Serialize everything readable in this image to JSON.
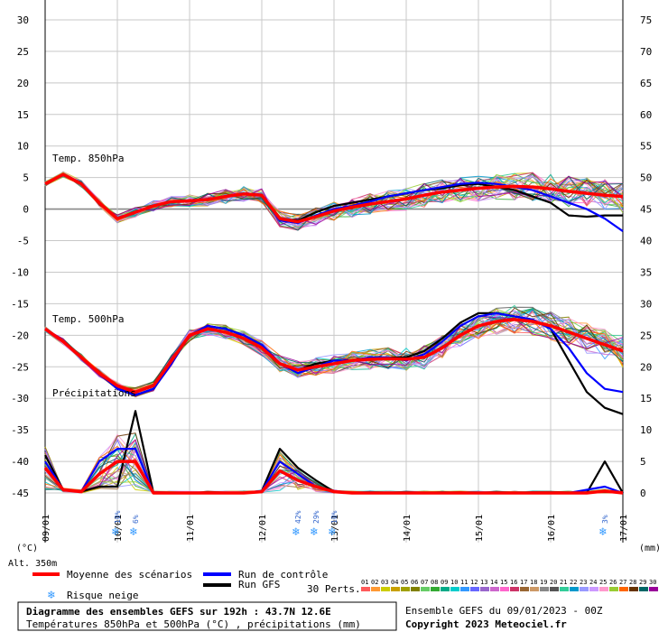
{
  "chart_data": {
    "type": "line",
    "title": "Diagramme des ensembles GEFS sur 192h : 43.7N 12.6E",
    "subtitle": "Températures 850hPa et 500hPa (°C) , précipitations (mm)",
    "run_label": "Ensemble GEFS du 09/01/2023 - 00Z",
    "copyright": "Copyright 2023 Meteociel.fr",
    "altitude_label": "Alt. 350m",
    "ylabel_left": "(°C)",
    "ylabel_right": "(mm)",
    "panel_labels": {
      "t850": "Temp. 850hPa",
      "t500": "Temp. 500hPa",
      "precip": "Précipitations"
    },
    "x_ticks": [
      "09/01",
      "10/01",
      "11/01",
      "12/01",
      "13/01",
      "14/01",
      "15/01",
      "16/01",
      "17/01"
    ],
    "x_range_hours": [
      0,
      192
    ],
    "y_left_ticks": [
      30,
      25,
      20,
      15,
      10,
      5,
      0,
      -5,
      -10,
      -15,
      -20,
      -25,
      -30,
      -35,
      -40,
      -45
    ],
    "y_left_range": [
      -45,
      30
    ],
    "y_right_ticks": [
      75,
      70,
      65,
      60,
      55,
      50,
      45,
      40,
      35,
      30,
      25,
      20,
      15,
      10,
      5,
      0
    ],
    "y_right_range": [
      0,
      75
    ],
    "grid": true,
    "precip_axis_note": "Precipitation values plotted on right axis scale (mm)",
    "legend": {
      "mean": "Moyenne des scénarios",
      "control": "Run de contrôle",
      "gfs": "Run GFS",
      "snow": "Risque neige",
      "perts": "30 Perts.",
      "pert_numbers": [
        "01",
        "02",
        "03",
        "04",
        "05",
        "06",
        "07",
        "08",
        "09",
        "10",
        "11",
        "12",
        "13",
        "14",
        "15",
        "16",
        "17",
        "18",
        "19",
        "20",
        "21",
        "22",
        "23",
        "24",
        "25",
        "26",
        "27",
        "28",
        "29",
        "30"
      ]
    },
    "colors": {
      "mean": "#ff0000",
      "control": "#0000ff",
      "gfs": "#000000",
      "perts": [
        "#ff5a5a",
        "#ff9933",
        "#cccc00",
        "#c8a000",
        "#a0a000",
        "#808000",
        "#66cc66",
        "#33aa33",
        "#00aa88",
        "#00cccc",
        "#3399ff",
        "#6666ff",
        "#9966cc",
        "#cc66cc",
        "#ff66cc",
        "#cc3366",
        "#996633",
        "#cc9966",
        "#888888",
        "#555555",
        "#33cc99",
        "#0099cc",
        "#9999ff",
        "#cc99ff",
        "#ff99cc",
        "#99cc33",
        "#ff6600",
        "#663300",
        "#006666",
        "#990099"
      ]
    },
    "hours": [
      0,
      6,
      12,
      18,
      24,
      30,
      36,
      42,
      48,
      54,
      60,
      66,
      72,
      78,
      84,
      90,
      96,
      102,
      108,
      114,
      120,
      126,
      132,
      138,
      144,
      150,
      156,
      162,
      168,
      174,
      180,
      186,
      192
    ],
    "series": [
      {
        "name": "Moyenne des scénarios",
        "level": "850",
        "values": [
          4,
          5.5,
          4,
          1,
          -1.5,
          -0.5,
          0.5,
          1.2,
          1.3,
          1.5,
          2,
          2.4,
          2.2,
          -1.5,
          -2,
          -1.2,
          -0.3,
          0.3,
          0.8,
          1.2,
          1.6,
          2.2,
          2.7,
          3,
          3.3,
          3.5,
          3.6,
          3.5,
          3.2,
          2.8,
          2.5,
          2.2,
          2
        ]
      },
      {
        "name": "Run de contrôle",
        "level": "850",
        "values": [
          4,
          5.5,
          4,
          1,
          -1.5,
          -0.5,
          0.5,
          1.2,
          1.3,
          1.6,
          2,
          2.5,
          2.3,
          -1.8,
          -2.2,
          -1,
          0,
          0.5,
          1.2,
          2,
          2.5,
          3,
          3.5,
          4,
          4.2,
          4,
          3.5,
          3,
          2,
          1,
          0,
          -1.5,
          -3.5
        ]
      },
      {
        "name": "Run GFS",
        "level": "850",
        "values": [
          4,
          5.5,
          4,
          1,
          -1.5,
          -0.5,
          0.5,
          1.2,
          1.2,
          1.5,
          2,
          2.4,
          2.2,
          -1.5,
          -1.8,
          -0.5,
          0.5,
          1,
          1.5,
          2,
          2.5,
          3,
          3.3,
          3.8,
          4,
          3.5,
          3,
          2,
          1,
          -1,
          -1.2,
          -1,
          -1
        ]
      },
      {
        "name": "Moyenne des scénarios",
        "level": "500",
        "values": [
          -19,
          -21,
          -23.5,
          -26,
          -28,
          -29,
          -28,
          -24,
          -20,
          -19,
          -19.5,
          -20.5,
          -22,
          -24.5,
          -25.5,
          -25,
          -24.5,
          -24,
          -23.8,
          -23.7,
          -23.8,
          -23.5,
          -22,
          -20,
          -18.5,
          -17.8,
          -17.5,
          -17.8,
          -18.5,
          -19.5,
          -20.5,
          -21.5,
          -22.5
        ]
      },
      {
        "name": "Run de contrôle",
        "level": "500",
        "values": [
          -19,
          -21,
          -23.5,
          -26,
          -28.5,
          -29.5,
          -28.5,
          -24.5,
          -20,
          -18.5,
          -19,
          -20,
          -21.5,
          -24.5,
          -26,
          -25,
          -24,
          -24,
          -23.5,
          -23.5,
          -24,
          -23,
          -21,
          -18.5,
          -17,
          -16.5,
          -17,
          -17.5,
          -19,
          -22,
          -26,
          -28.5,
          -29
        ]
      },
      {
        "name": "Run GFS",
        "level": "500",
        "values": [
          -19,
          -21,
          -23.5,
          -26,
          -28.5,
          -29.5,
          -28.5,
          -24.5,
          -20,
          -18.5,
          -19,
          -20,
          -21.5,
          -24.5,
          -25.5,
          -24.5,
          -24,
          -24,
          -23.5,
          -23.5,
          -23.5,
          -22.5,
          -20.5,
          -18,
          -16.5,
          -16.5,
          -17,
          -17.5,
          -19,
          -24,
          -29,
          -31.5,
          -32.5
        ]
      },
      {
        "name": "Moyenne des scénarios",
        "level": "precip",
        "values": [
          4,
          0.5,
          0.2,
          3,
          5,
          5,
          0,
          0,
          0,
          0,
          0,
          0,
          0.2,
          3.5,
          2,
          1,
          0.2,
          0,
          0,
          0,
          0,
          0,
          0,
          0,
          0,
          0,
          0,
          0,
          0,
          0,
          0,
          0.3,
          0
        ]
      },
      {
        "name": "Run de contrôle",
        "level": "precip",
        "values": [
          5,
          0.5,
          0.2,
          5,
          7,
          7,
          0,
          0,
          0,
          0,
          0,
          0,
          0.3,
          5,
          3,
          1,
          0.2,
          0,
          0,
          0,
          0,
          0,
          0,
          0,
          0,
          0,
          0,
          0,
          0,
          0,
          0.5,
          1,
          0
        ]
      },
      {
        "name": "Run GFS",
        "level": "precip",
        "values": [
          6,
          0.5,
          0.2,
          1,
          1,
          13,
          0,
          0,
          0,
          0,
          0,
          0,
          0.3,
          7,
          4,
          2,
          0.2,
          0,
          0,
          0,
          0,
          0,
          0,
          0,
          0,
          0,
          0,
          0,
          0,
          0,
          0,
          5,
          0
        ]
      }
    ],
    "snow_markers": [
      {
        "hour": 24,
        "label": "10%"
      },
      {
        "hour": 30,
        "label": "6%"
      },
      {
        "hour": 84,
        "label": "42%"
      },
      {
        "hour": 90,
        "label": "29%"
      },
      {
        "hour": 96,
        "label": "10%"
      },
      {
        "hour": 186,
        "label": "3%"
      }
    ]
  }
}
